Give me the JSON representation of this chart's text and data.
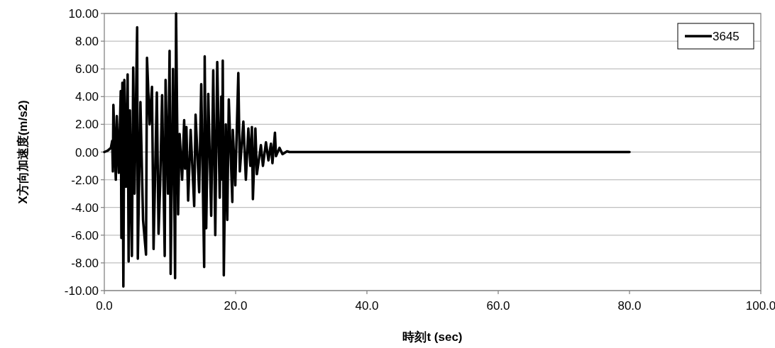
{
  "chart_data": {
    "type": "line",
    "xlabel": "時刻t (sec)",
    "ylabel": "X方向加速度(m/s2)",
    "xlim": [
      0,
      100
    ],
    "ylim": [
      -10,
      10
    ],
    "xticks": [
      {
        "value": 0,
        "label": "0.0"
      },
      {
        "value": 20,
        "label": "20.0"
      },
      {
        "value": 40,
        "label": "40.0"
      },
      {
        "value": 60,
        "label": "60.0"
      },
      {
        "value": 80,
        "label": "80.0"
      },
      {
        "value": 100,
        "label": "100.0"
      }
    ],
    "yticks": [
      {
        "value": -10,
        "label": "-10.00"
      },
      {
        "value": -8,
        "label": "-8.00"
      },
      {
        "value": -6,
        "label": "-6.00"
      },
      {
        "value": -4,
        "label": "-4.00"
      },
      {
        "value": -2,
        "label": "-2.00"
      },
      {
        "value": 0,
        "label": "0.00"
      },
      {
        "value": 2,
        "label": "2.00"
      },
      {
        "value": 4,
        "label": "4.00"
      },
      {
        "value": 6,
        "label": "6.00"
      },
      {
        "value": 8,
        "label": "8.00"
      },
      {
        "value": 10,
        "label": "10.00"
      }
    ],
    "grid": "y",
    "legend": "top right",
    "marker": "none",
    "line_style": "solid",
    "series": [
      {
        "name": "3645",
        "color": "#000000",
        "x": [
          0,
          0.5,
          1.0,
          1.2,
          1.3,
          1.38,
          1.75,
          1.9,
          2.2,
          2.5,
          2.6,
          2.75,
          2.9,
          3.05,
          3.3,
          3.55,
          3.7,
          3.9,
          4.2,
          4.4,
          4.6,
          5.0,
          5.1,
          5.5,
          5.9,
          6.35,
          6.5,
          6.9,
          7.26,
          7.5,
          8.0,
          8.26,
          8.5,
          8.8,
          9.2,
          9.33,
          9.7,
          9.94,
          10.1,
          10.47,
          10.78,
          10.93,
          11.24,
          11.47,
          11.85,
          12.16,
          12.3,
          12.5,
          12.77,
          13.15,
          13.69,
          13.9,
          14.45,
          14.76,
          15.21,
          15.29,
          15.52,
          15.83,
          16.28,
          16.59,
          16.9,
          17.2,
          17.58,
          17.81,
          17.97,
          18.04,
          18.2,
          18.5,
          18.73,
          18.96,
          19.5,
          19.57,
          19.95,
          20.41,
          20.64,
          21.18,
          21.56,
          21.94,
          22.25,
          22.48,
          22.63,
          23.01,
          23.24,
          23.85,
          24.16,
          24.62,
          25.0,
          25.38,
          25.61,
          25.99,
          26.15,
          26.68,
          27.14,
          27.83,
          28.2,
          80
        ],
        "values": [
          0,
          0.1,
          0.3,
          0.8,
          -1.4,
          3.4,
          -2.0,
          2.6,
          -1.5,
          4.4,
          -6.2,
          5.0,
          -9.7,
          5.2,
          -2.5,
          5.6,
          -7.9,
          3.0,
          -7.5,
          6.1,
          -3.0,
          9.0,
          -7.7,
          3.6,
          -4.9,
          -7.4,
          6.8,
          2.0,
          4.7,
          -7.0,
          4.3,
          -5.9,
          -2.4,
          4.1,
          -7.5,
          5.2,
          -3.0,
          7.3,
          -8.8,
          6.0,
          -9.1,
          10.0,
          -4.5,
          1.3,
          -2.0,
          2.3,
          -1.2,
          1.8,
          -3.5,
          1.6,
          -3.9,
          2.7,
          -2.9,
          4.9,
          -8.3,
          6.9,
          -5.5,
          4.2,
          -4.6,
          5.9,
          -6.0,
          6.5,
          -3.3,
          4.0,
          -2.0,
          6.6,
          -8.9,
          2.0,
          -4.9,
          3.8,
          -3.6,
          1.6,
          -2.4,
          5.7,
          -1.4,
          2.2,
          -2.0,
          1.7,
          -1.0,
          1.8,
          -3.4,
          1.7,
          -1.6,
          0.5,
          -1.0,
          0.7,
          -0.6,
          0.6,
          -0.8,
          1.4,
          -0.3,
          0.3,
          -0.15,
          0.05,
          0,
          0
        ]
      }
    ]
  }
}
